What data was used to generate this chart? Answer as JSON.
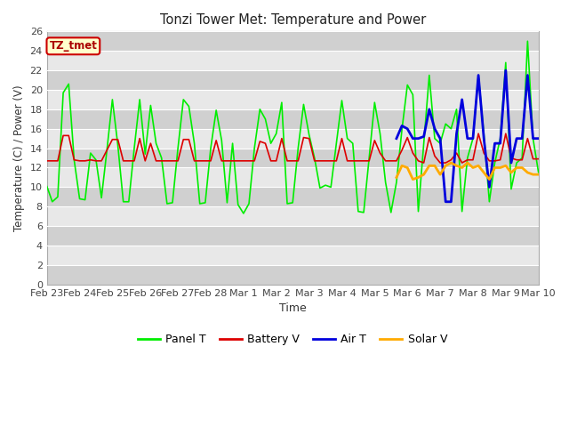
{
  "title": "Tonzi Tower Met: Temperature and Power",
  "xlabel": "Time",
  "ylabel": "Temperature (C) / Power (V)",
  "ylim": [
    0,
    26
  ],
  "yticks": [
    0,
    2,
    4,
    6,
    8,
    10,
    12,
    14,
    16,
    18,
    20,
    22,
    24,
    26
  ],
  "xtick_labels": [
    "Feb 23",
    "Feb 24",
    "Feb 25",
    "Feb 26",
    "Feb 27",
    "Feb 28",
    "Mar 1",
    "Mar 2",
    "Mar 3",
    "Mar 4",
    "Mar 5",
    "Mar 6",
    "Mar 7",
    "Mar 8",
    "Mar 9",
    "Mar 10"
  ],
  "annotation_text": "TZ_tmet",
  "annotation_box_facecolor": "#ffffcc",
  "annotation_box_edgecolor": "#cc0000",
  "annotation_text_color": "#aa0000",
  "legend_entries": [
    "Panel T",
    "Battery V",
    "Air T",
    "Solar V"
  ],
  "legend_colors": [
    "#00ee00",
    "#dd0000",
    "#0000dd",
    "#ffaa00"
  ],
  "line_colors": {
    "panel_t": "#00ee00",
    "battery_v": "#dd0000",
    "air_t": "#0000dd",
    "solar_v": "#ffaa00"
  },
  "fig_facecolor": "#ffffff",
  "axes_facecolor": "#e8e8e8",
  "stripe_facecolor": "#d0d0d0",
  "grid_color": "#ffffff",
  "panel_t": [
    10.1,
    8.5,
    9.0,
    19.7,
    20.6,
    12.8,
    8.8,
    8.7,
    13.5,
    12.8,
    8.9,
    13.8,
    19.0,
    14.3,
    8.5,
    8.5,
    14.0,
    19.0,
    13.4,
    18.4,
    14.5,
    13.0,
    8.3,
    8.4,
    14.0,
    19.0,
    18.3,
    14.5,
    8.3,
    8.4,
    14.0,
    17.9,
    14.8,
    8.4,
    14.5,
    8.2,
    7.3,
    8.3,
    14.0,
    18.0,
    17.0,
    14.5,
    15.5,
    18.7,
    8.3,
    8.4,
    14.0,
    18.5,
    15.4,
    13.0,
    9.9,
    10.2,
    10.0,
    14.5,
    18.9,
    15.0,
    14.5,
    7.5,
    7.4,
    13.0,
    18.7,
    15.5,
    10.5,
    7.4,
    10.5,
    15.9,
    20.5,
    19.5,
    7.5,
    14.5,
    21.5,
    15.0,
    14.5,
    16.5,
    16.0,
    18.0,
    7.5,
    13.0,
    15.0,
    21.5,
    15.5,
    8.5,
    12.5,
    15.0,
    22.8,
    9.8,
    12.5,
    13.0,
    25.0,
    15.0,
    11.5
  ],
  "battery_v": [
    12.7,
    12.7,
    12.7,
    15.3,
    15.3,
    12.8,
    12.7,
    12.7,
    12.8,
    12.7,
    12.7,
    13.8,
    14.9,
    14.9,
    12.7,
    12.7,
    12.7,
    15.0,
    12.7,
    14.5,
    12.7,
    12.7,
    12.7,
    12.7,
    12.7,
    14.9,
    14.9,
    12.7,
    12.7,
    12.7,
    12.7,
    14.8,
    12.7,
    12.7,
    12.7,
    12.7,
    12.7,
    12.7,
    12.7,
    14.7,
    14.5,
    12.7,
    12.7,
    15.0,
    12.7,
    12.7,
    12.7,
    15.1,
    15.0,
    12.7,
    12.7,
    12.7,
    12.7,
    12.7,
    15.0,
    12.7,
    12.7,
    12.7,
    12.7,
    12.7,
    14.8,
    13.5,
    12.7,
    12.7,
    12.7,
    13.8,
    15.1,
    13.5,
    12.7,
    12.5,
    15.1,
    13.2,
    12.5,
    12.5,
    12.8,
    13.5,
    12.5,
    12.8,
    12.8,
    15.5,
    13.5,
    12.7,
    12.7,
    12.8,
    15.5,
    13.0,
    12.8,
    12.8,
    15.0,
    12.9,
    12.9
  ],
  "air_t": [
    null,
    null,
    null,
    null,
    null,
    null,
    null,
    null,
    null,
    null,
    null,
    null,
    null,
    null,
    null,
    null,
    null,
    null,
    null,
    null,
    null,
    null,
    null,
    null,
    null,
    null,
    null,
    null,
    null,
    null,
    null,
    null,
    null,
    null,
    null,
    null,
    null,
    null,
    null,
    null,
    null,
    null,
    null,
    null,
    null,
    null,
    null,
    null,
    null,
    null,
    null,
    null,
    null,
    null,
    null,
    null,
    null,
    null,
    null,
    null,
    null,
    null,
    null,
    null,
    15.0,
    16.3,
    16.0,
    15.0,
    15.0,
    15.2,
    18.0,
    16.0,
    15.0,
    8.5,
    8.5,
    15.5,
    19.0,
    15.0,
    15.0,
    21.5,
    15.0,
    10.0,
    14.5,
    14.5,
    22.0,
    12.5,
    15.0,
    15.0,
    21.5,
    15.0,
    15.0
  ],
  "solar_v": [
    null,
    null,
    null,
    null,
    null,
    null,
    null,
    null,
    null,
    null,
    null,
    null,
    null,
    null,
    null,
    null,
    null,
    null,
    null,
    null,
    null,
    null,
    null,
    null,
    null,
    null,
    null,
    null,
    null,
    null,
    null,
    null,
    null,
    null,
    null,
    null,
    null,
    null,
    null,
    null,
    null,
    null,
    null,
    null,
    null,
    null,
    null,
    null,
    null,
    null,
    null,
    null,
    null,
    null,
    null,
    null,
    null,
    null,
    null,
    null,
    null,
    null,
    null,
    null,
    11.0,
    12.2,
    12.0,
    10.8,
    11.0,
    11.3,
    12.2,
    12.2,
    11.3,
    12.2,
    12.5,
    12.2,
    12.0,
    12.5,
    12.0,
    12.2,
    11.5,
    10.8,
    12.0,
    12.0,
    12.2,
    11.5,
    12.0,
    12.0,
    11.5,
    11.3,
    11.3
  ]
}
